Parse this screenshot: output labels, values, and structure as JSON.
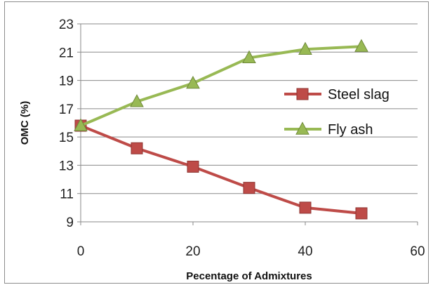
{
  "chart_data": {
    "type": "line",
    "xlabel": "Pecentage of Admixtures",
    "ylabel": "OMC (%)",
    "xlim": [
      0,
      60
    ],
    "ylim": [
      9,
      23
    ],
    "xticks": [
      0,
      20,
      40,
      60
    ],
    "yticks": [
      9,
      11,
      13,
      15,
      17,
      19,
      21,
      23
    ],
    "grid": "horizontal",
    "legend_position": "right",
    "series": [
      {
        "name": "Steel slag",
        "color": "#be4b48",
        "marker": "square",
        "x": [
          0,
          10,
          20,
          30,
          40,
          50
        ],
        "y": [
          15.8,
          14.2,
          12.9,
          11.4,
          10.0,
          9.6
        ]
      },
      {
        "name": "Fly ash",
        "color": "#98b954",
        "marker": "triangle",
        "x": [
          0,
          10,
          20,
          30,
          40,
          50
        ],
        "y": [
          15.8,
          17.5,
          18.8,
          20.6,
          21.2,
          21.4
        ]
      }
    ]
  }
}
